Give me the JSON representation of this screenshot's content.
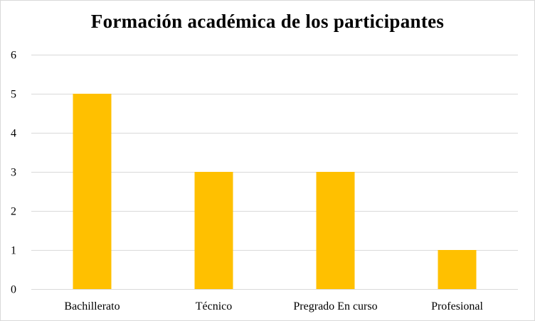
{
  "chart_data": {
    "type": "bar",
    "title": "Formación académica de los participantes",
    "categories": [
      "Bachillerato",
      "Técnico",
      "Pregrado En curso",
      "Profesional"
    ],
    "values": [
      5,
      3,
      3,
      1
    ],
    "ylim": [
      0,
      6
    ],
    "yticks": [
      "0",
      "1",
      "2",
      "3",
      "4",
      "5",
      "6"
    ],
    "xlabel": "",
    "ylabel": "",
    "grid": true,
    "legend": "none",
    "bar_color": "#FFC000",
    "grid_color": "#d9d9d9"
  }
}
